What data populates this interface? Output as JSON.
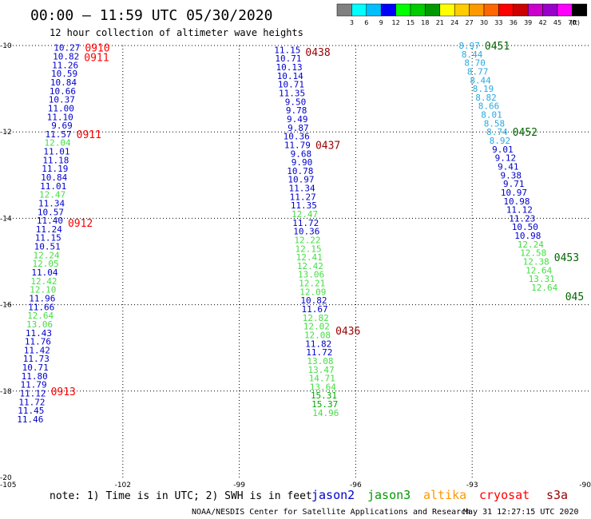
{
  "chart_data": {
    "type": "scatter",
    "title": "00:00 – 11:59 UTC 05/30/2020",
    "subtitle": "12 hour collection of altimeter wave heights",
    "xlim": [
      -105,
      -90
    ],
    "ylim": [
      -20,
      -10
    ],
    "x_ticks": [
      "-105",
      "-102",
      "-99",
      "-96",
      "-93",
      "-90"
    ],
    "y_ticks": [
      "-10",
      "-12",
      "-14",
      "-16",
      "-18",
      "-20"
    ],
    "colorbar": {
      "unit": "(ft)",
      "labels": [
        "3",
        "6",
        "9",
        "12",
        "15",
        "18",
        "21",
        "24",
        "27",
        "30",
        "33",
        "36",
        "39",
        "42",
        "45",
        "70"
      ],
      "colors": [
        "#808080",
        "#00ffff",
        "#00bfff",
        "#0000ff",
        "#00ff00",
        "#00cc00",
        "#009900",
        "#ffff00",
        "#ffcc00",
        "#ff9900",
        "#ff6600",
        "#ff0000",
        "#cc0000",
        "#cc00cc",
        "#9900cc",
        "#ff00ff",
        "#000000"
      ]
    },
    "tracks": [
      {
        "id": "track-a",
        "satellite": "cryosat",
        "start": [
          -103.1,
          -10.05
        ],
        "step": [
          -0.022,
          0.2
        ],
        "values": [
          "10.27",
          "10.82",
          "11.26",
          "10.59",
          "10.84",
          "10.66",
          "10.37",
          "11.00",
          "11.10",
          "9.69",
          "11.57",
          "12.04",
          "11.01",
          "11.18",
          "11.19",
          "10.84",
          "11.01",
          "12.47",
          "11.34",
          "10.57",
          "11.40",
          "11.24",
          "11.15",
          "10.51",
          "12.24",
          "12.05",
          "11.04",
          "12.42",
          "12.10",
          "11.96",
          "11.66",
          "12.64",
          "13.06",
          "11.43",
          "11.76",
          "11.42",
          "11.73",
          "10.71",
          "11.80",
          "11.79",
          "11.12",
          "11.72",
          "11.45",
          "11.46"
        ],
        "times": [
          {
            "label": "0910",
            "y": -10.05
          },
          {
            "label": "0911",
            "y": -10.27
          },
          {
            "label": "0911",
            "y": -12.05
          },
          {
            "label": "0912",
            "y": -14.1
          },
          {
            "label": "0913",
            "y": -18.0
          }
        ],
        "time_color": "#ff0000"
      },
      {
        "id": "track-b",
        "satellite": "s3a",
        "start": [
          -97.42,
          -10.1
        ],
        "step": [
          0.0235,
          0.2
        ],
        "values": [
          "11.15",
          "10.71",
          "10.13",
          "10.14",
          "10.71",
          "11.35",
          "9.50",
          "9.78",
          "9.49",
          "9.87",
          "10.36",
          "11.79",
          "9.68",
          "9.90",
          "10.78",
          "10.97",
          "11.34",
          "11.27",
          "11.35",
          "12.47",
          "11.72",
          "10.36",
          "12.22",
          "12.15",
          "12.41",
          "12.42",
          "13.06",
          "12.21",
          "12.09",
          "10.82",
          "11.67",
          "12.82",
          "12.02",
          "12.08",
          "11.82",
          "11.72",
          "13.08",
          "13.47",
          "14.71",
          "13.64",
          "15.31",
          "15.37",
          "14.96"
        ],
        "times": [
          {
            "label": "0438",
            "y": -10.15
          },
          {
            "label": "0437",
            "y": -12.3
          },
          {
            "label": "0436",
            "y": -16.6
          }
        ],
        "time_color": "#990000"
      },
      {
        "id": "track-c",
        "satellite": "jason3",
        "start": [
          -92.8,
          -10.0
        ],
        "step": [
          0.0715,
          0.2
        ],
        "values": [
          "8.97",
          "8.44",
          "8.70",
          "8.77",
          "8.44",
          "8.19",
          "8.82",
          "8.66",
          "8.01",
          "8.58",
          "8.74",
          "8.92",
          "9.01",
          "9.12",
          "9.41",
          "9.38",
          "9.71",
          "10.97",
          "10.98",
          "11.12",
          "11.23",
          "10.50",
          "10.98",
          "12.24",
          "12.58",
          "12.38",
          "12.64",
          "13.31",
          "12.64"
        ],
        "times": [
          {
            "label": "0451",
            "y": -10.0
          },
          {
            "label": "0452",
            "y": -12.0
          },
          {
            "label": "0453",
            "y": -14.9
          },
          {
            "label": "045",
            "y": -15.8
          }
        ],
        "time_color": "#006600"
      }
    ]
  },
  "footer": {
    "note": "note:  1) Time is in UTC; 2) SWH is in feet",
    "satellites": [
      {
        "name": "jason2",
        "color": "#0000cc"
      },
      {
        "name": "jason3",
        "color": "#009900"
      },
      {
        "name": "altika",
        "color": "#ff9900"
      },
      {
        "name": "cryosat",
        "color": "#ff0000"
      },
      {
        "name": "s3a",
        "color": "#990000"
      }
    ],
    "credit": "NOAA/NESDIS Center for Satellite Applications and Research",
    "timestamp": "May 31 12:27:15 UTC 2020"
  }
}
